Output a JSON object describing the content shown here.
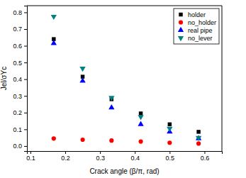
{
  "chart_data": {
    "type": "scatter",
    "x_label": "Crack angle (β/π, rad)",
    "y_label": "Jel/σYc",
    "x": [
      0.167,
      0.25,
      0.333,
      0.417,
      0.5,
      0.583
    ],
    "series": [
      {
        "name": "holder",
        "color": "#000000",
        "marker": "square",
        "values": [
          0.64,
          0.415,
          0.28,
          0.195,
          0.13,
          0.085
        ]
      },
      {
        "name": "no_holder",
        "color": "#ff0000",
        "marker": "circle",
        "values": [
          0.045,
          0.038,
          0.033,
          0.027,
          0.02,
          0.015
        ]
      },
      {
        "name": "real pipe",
        "color": "#0000ff",
        "marker": "triangle-up",
        "values": [
          0.615,
          0.39,
          0.23,
          0.13,
          0.085,
          0.045
        ]
      },
      {
        "name": "no_lever",
        "color": "#008080",
        "marker": "triangle-down",
        "values": [
          0.775,
          0.465,
          0.29,
          0.175,
          0.105,
          0.05
        ]
      }
    ],
    "xlim": [
      0.09,
      0.65
    ],
    "xticks": [
      0.1,
      0.2,
      0.3,
      0.4,
      0.5,
      0.6
    ],
    "ylim": [
      -0.03,
      0.84
    ],
    "yticks": [
      {
        "value": 0,
        "label": "0.0"
      },
      0.1,
      0.2,
      0.3,
      0.4,
      0.5,
      0.6,
      0.7,
      0.8
    ],
    "legend": "upper-right",
    "grid": false
  }
}
